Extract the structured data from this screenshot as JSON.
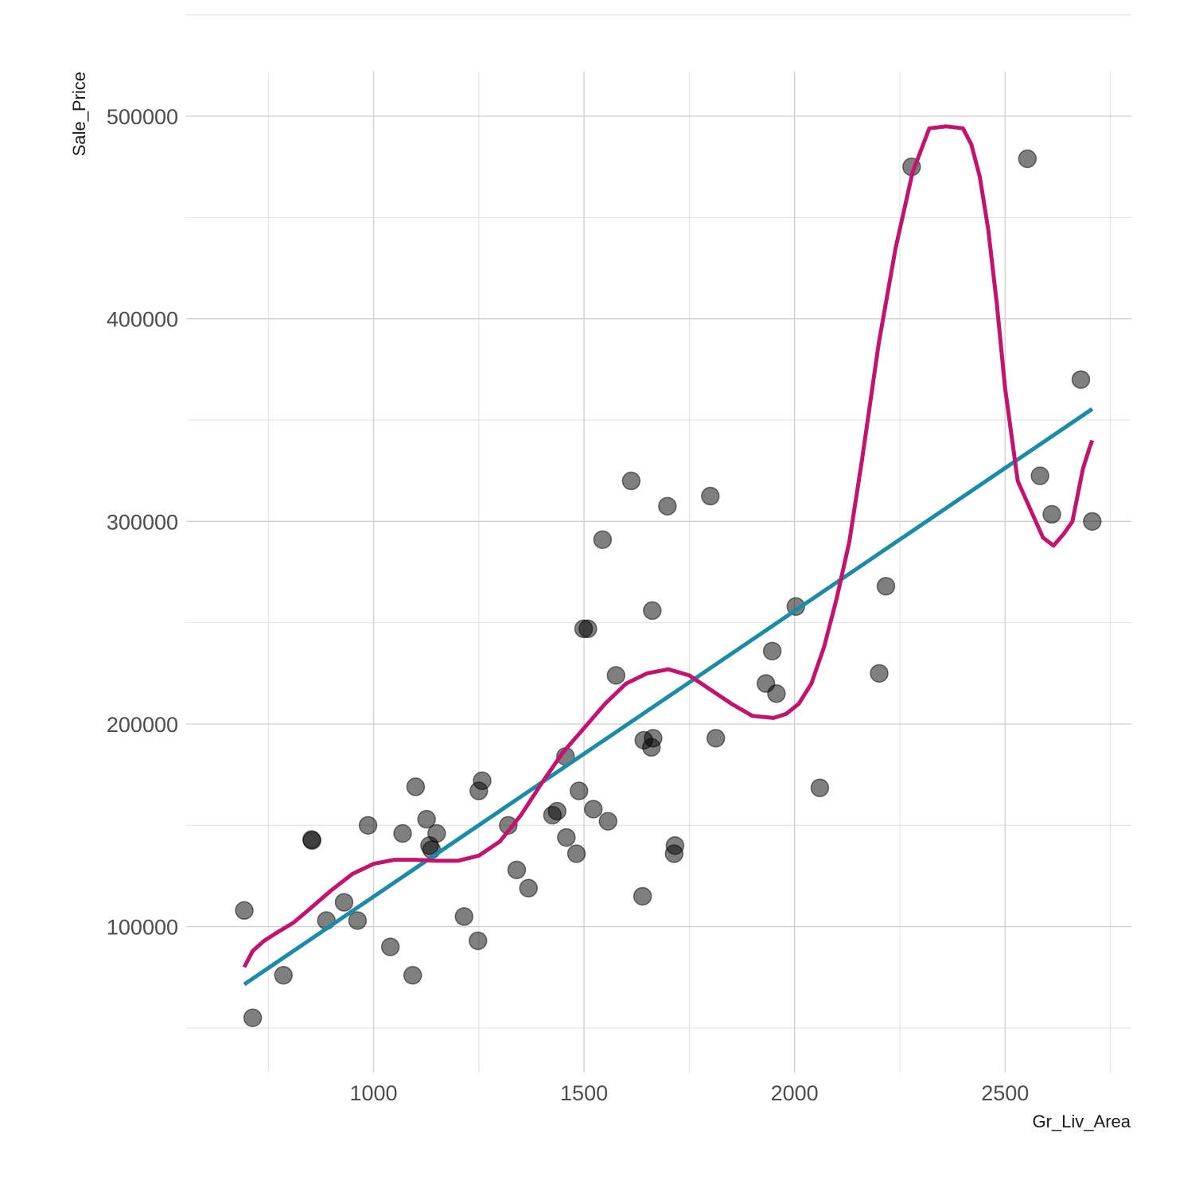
{
  "chart_data": {
    "type": "scatter",
    "title": "",
    "xlabel": "Gr_Liv_Area",
    "ylabel": "Sale_Price",
    "xlim": [
      555,
      2800
    ],
    "ylim": [
      28000,
      522000
    ],
    "x_ticks": [
      1000,
      1500,
      2000,
      2500
    ],
    "x_tick_labels": [
      "1000",
      "1500",
      "2000",
      "2500"
    ],
    "y_ticks": [
      100000,
      200000,
      300000,
      400000,
      500000
    ],
    "y_tick_labels": [
      "100000",
      "200000",
      "300000",
      "400000",
      "500000"
    ],
    "grid": true,
    "legend": "none",
    "colors": {
      "points": "#000000",
      "linear_fit": "#1b8ba6",
      "smooth_fit": "#c2146e",
      "grid": "#cfcfcf"
    },
    "series": [
      {
        "kind": "points",
        "x": [
          693,
          713,
          786,
          853,
          854,
          888,
          930,
          962,
          987,
          1040,
          1069,
          1093,
          1100,
          1126,
          1133,
          1138,
          1150,
          1215,
          1248,
          1250,
          1258,
          1320,
          1340,
          1368,
          1425,
          1436,
          1456,
          1458,
          1482,
          1488,
          1499,
          1509,
          1522,
          1557,
          1544,
          1576,
          1612,
          1639,
          1642,
          1660,
          1662,
          1664,
          1698,
          1714,
          1716,
          1800,
          1813,
          1932,
          1947,
          1957,
          2003,
          2060,
          2201,
          2217,
          2278,
          2553,
          2583,
          2611,
          2680,
          2707
        ],
        "y": [
          108000,
          55000,
          76000,
          143000,
          142500,
          103000,
          112000,
          103000,
          150000,
          90000,
          146000,
          76000,
          169000,
          153000,
          140000,
          138000,
          146000,
          105000,
          93000,
          167000,
          172000,
          150000,
          128000,
          119000,
          155000,
          157000,
          184000,
          144000,
          136000,
          167000,
          247000,
          247000,
          158000,
          152000,
          291000,
          224000,
          320000,
          115000,
          192000,
          188500,
          256000,
          193000,
          307500,
          136000,
          140000,
          312500,
          193000,
          220000,
          236000,
          215000,
          258000,
          168500,
          225000,
          268000,
          475000,
          479000,
          322500,
          303500,
          370000,
          300000
        ]
      },
      {
        "kind": "line",
        "method": "linear",
        "x": [
          693,
          2707
        ],
        "y": [
          71500,
          355500
        ]
      },
      {
        "kind": "line",
        "method": "smooth",
        "x": [
          693,
          713,
          740,
          770,
          810,
          850,
          900,
          950,
          1000,
          1050,
          1100,
          1150,
          1200,
          1250,
          1300,
          1350,
          1400,
          1450,
          1500,
          1550,
          1600,
          1650,
          1700,
          1750,
          1800,
          1850,
          1900,
          1950,
          1980,
          2010,
          2040,
          2070,
          2100,
          2130,
          2160,
          2200,
          2240,
          2280,
          2320,
          2360,
          2400,
          2420,
          2440,
          2460,
          2480,
          2500,
          2530,
          2560,
          2590,
          2615,
          2640,
          2660,
          2685,
          2700,
          2707
        ],
        "y": [
          80000,
          88000,
          93000,
          97000,
          102000,
          109000,
          118000,
          126000,
          131000,
          133000,
          133000,
          132500,
          132500,
          135000,
          142000,
          155000,
          171000,
          186000,
          198000,
          210000,
          220000,
          225000,
          227000,
          224000,
          217000,
          210000,
          204000,
          203000,
          205000,
          210000,
          220000,
          238000,
          262000,
          290000,
          330000,
          388000,
          435000,
          472000,
          494000,
          495000,
          494000,
          486000,
          470000,
          444000,
          408000,
          366000,
          320000,
          306000,
          292000,
          288000,
          294000,
          300000,
          326000,
          336000,
          340000
        ]
      }
    ]
  }
}
